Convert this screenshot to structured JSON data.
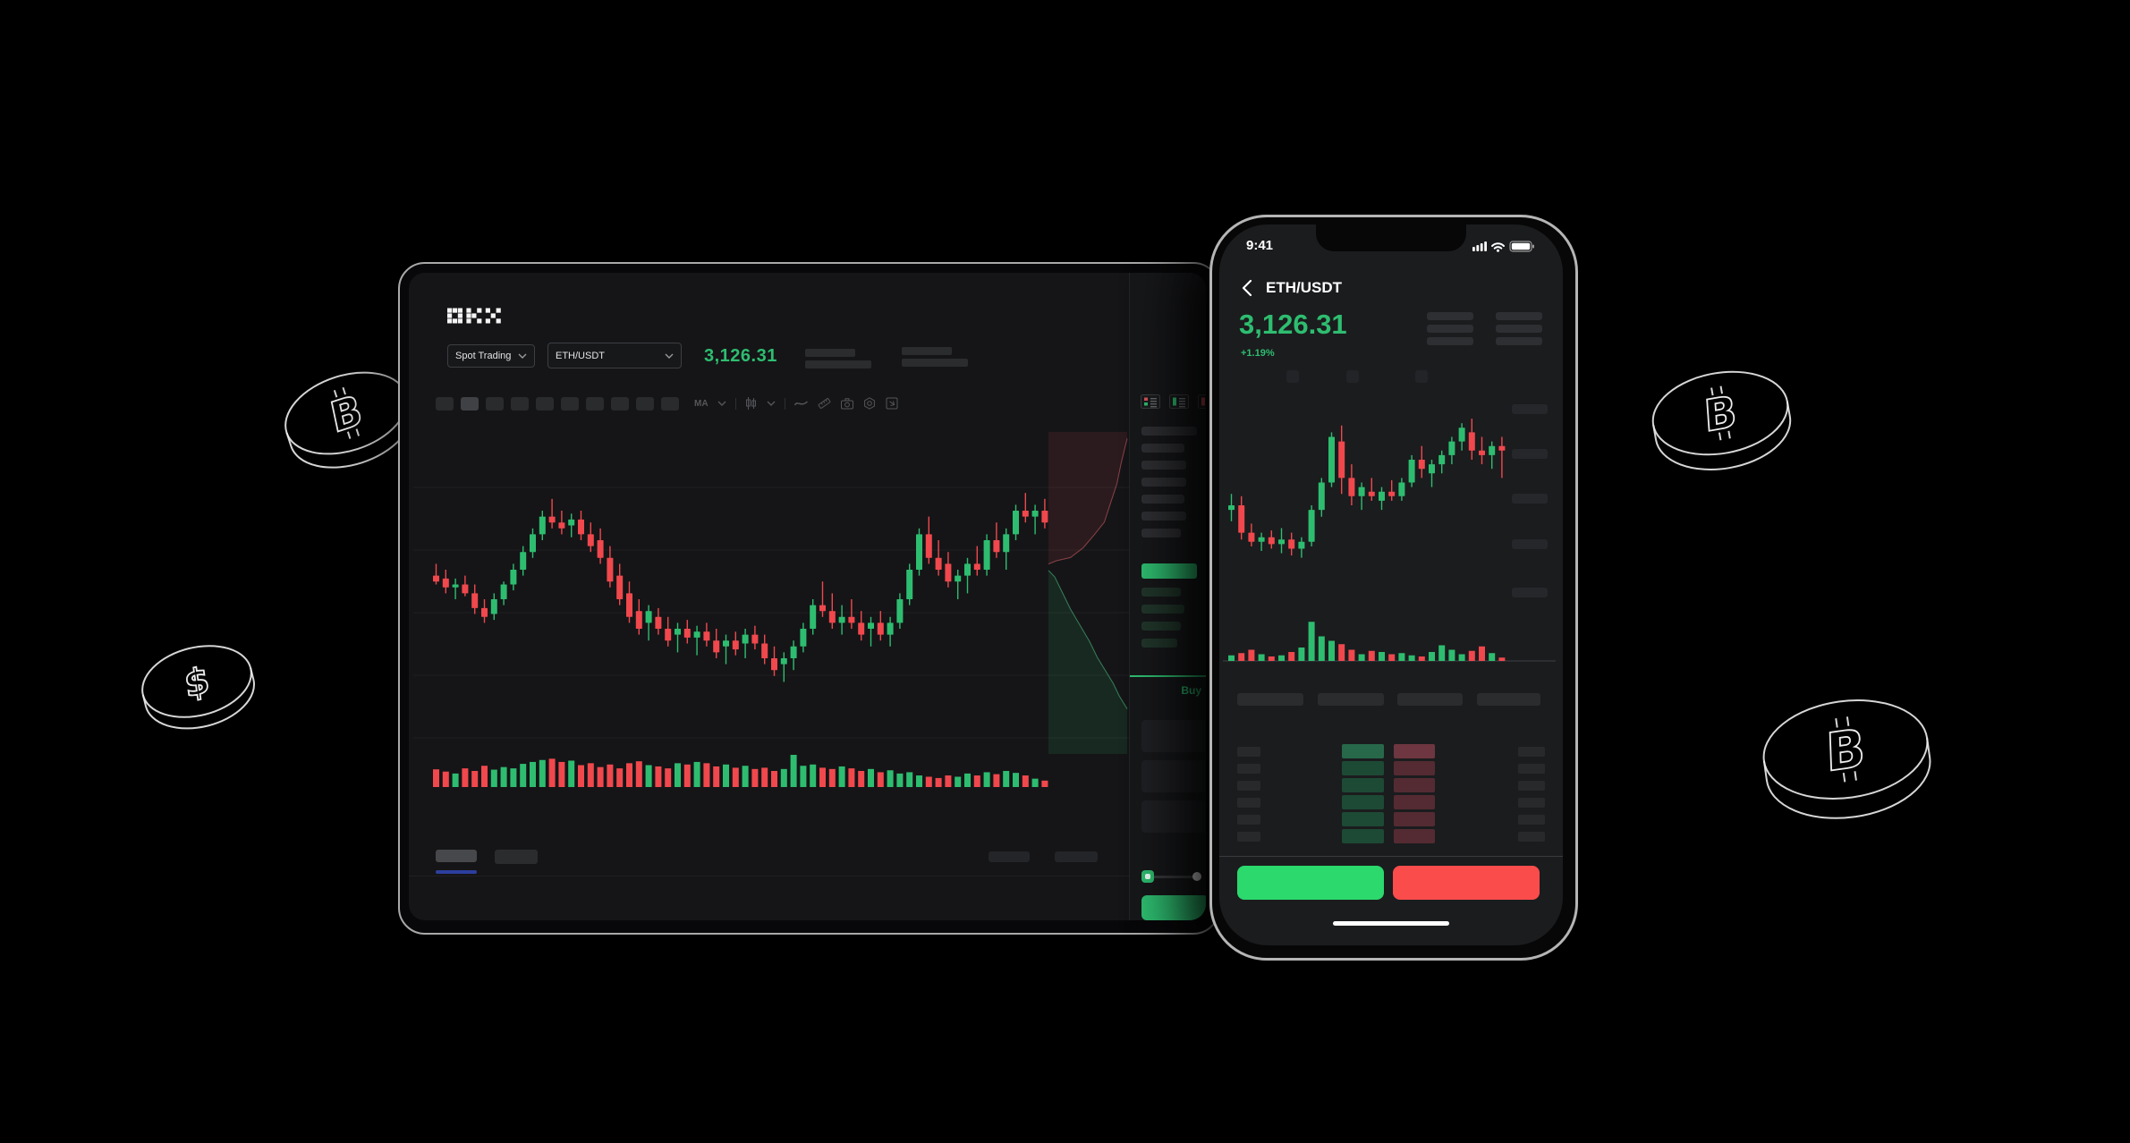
{
  "scene": {
    "description": "OKX trading app promo on black background",
    "background_color": "#000000"
  },
  "colors": {
    "up_green": "#2ebd70",
    "down_red": "#f0484d",
    "buy_button_green": "#2bd96d",
    "sell_button_red": "#fb4c4c",
    "tab_accent_blue": "#2c3f9e",
    "coin_outline": "#ededed"
  },
  "coins": [
    {
      "name": "bitcoin-coin-left",
      "symbol": "B",
      "type": "bitcoin"
    },
    {
      "name": "dollar-coin-left",
      "symbol": "$",
      "type": "dollar"
    },
    {
      "name": "bitcoin-coin-right-top",
      "symbol": "B",
      "type": "bitcoin"
    },
    {
      "name": "bitcoin-coin-right-bottom",
      "symbol": "B",
      "type": "bitcoin"
    }
  ],
  "tablet": {
    "header": {
      "logo": "OKX",
      "market_selector": "Spot Trading",
      "pair_selector": "ETH/USDT",
      "price": "3,126.31"
    },
    "toolbar": {
      "timeframe_slots": 10,
      "active_timeframe_index": 1,
      "ma_label": "MA",
      "icons": [
        "chevron-down",
        "candlestick-style",
        "chevron-down",
        "line-tool",
        "measure-tool",
        "camera-snapshot",
        "settings-gear",
        "fullscreen-expand"
      ]
    },
    "order_panel": {
      "layout_icons": [
        "book-both",
        "book-bids",
        "book-asks"
      ],
      "ask_row_widths": [
        62,
        48,
        50,
        50,
        48,
        50,
        44
      ],
      "bid_row_widths": [
        44,
        48,
        44,
        40
      ],
      "buy_tab": "Buy",
      "input_slots": 3
    },
    "bottom_tabs": {
      "left_slots": 2,
      "right_slots": 2,
      "active_index": 0
    }
  },
  "phone": {
    "status_bar": {
      "time": "9:41",
      "icons": [
        "signal",
        "wifi",
        "battery"
      ]
    },
    "header": {
      "back_icon": "chevron-left",
      "pair": "ETH/USDT"
    },
    "ticker": {
      "price": "3,126.31",
      "change": "+1.19%"
    },
    "chart": {
      "price_label_slots": 5,
      "timeframe_dot_slots": 3
    },
    "order_book": {
      "header_slots": 4,
      "row_count": 6
    },
    "actions": {
      "buy_button": "",
      "sell_button": ""
    }
  },
  "chart_data": [
    {
      "id": "tablet-candles",
      "type": "candlestick",
      "title": "ETH/USDT spot price with volume and depth overlay (tablet web app, no axis labels shown)",
      "last_price": "3,126.31",
      "units": "percent_of_chart_height",
      "grid": "faint horizontal lines",
      "candles_ohlc": [
        [
          58,
          62,
          55,
          56
        ],
        [
          57,
          60,
          52,
          54
        ],
        [
          54,
          57,
          50,
          55
        ],
        [
          55,
          58,
          51,
          52
        ],
        [
          52,
          55,
          45,
          47
        ],
        [
          47,
          50,
          42,
          44
        ],
        [
          45,
          52,
          43,
          50
        ],
        [
          50,
          56,
          48,
          55
        ],
        [
          55,
          62,
          53,
          60
        ],
        [
          60,
          68,
          58,
          66
        ],
        [
          66,
          74,
          64,
          72
        ],
        [
          72,
          80,
          70,
          78
        ],
        [
          78,
          84,
          74,
          76
        ],
        [
          76,
          80,
          72,
          74
        ],
        [
          75,
          79,
          71,
          77
        ],
        [
          77,
          80,
          70,
          72
        ],
        [
          72,
          76,
          66,
          68
        ],
        [
          70,
          74,
          62,
          64
        ],
        [
          64,
          68,
          54,
          56
        ],
        [
          58,
          62,
          48,
          50
        ],
        [
          52,
          56,
          42,
          44
        ],
        [
          46,
          50,
          38,
          40
        ],
        [
          42,
          48,
          36,
          46
        ],
        [
          44,
          47,
          38,
          40
        ],
        [
          40,
          44,
          34,
          36
        ],
        [
          38,
          42,
          32,
          40
        ],
        [
          40,
          43,
          35,
          37
        ],
        [
          37,
          41,
          31,
          39
        ],
        [
          39,
          42,
          34,
          36
        ],
        [
          36,
          40,
          30,
          32
        ],
        [
          34,
          38,
          28,
          36
        ],
        [
          36,
          39,
          31,
          33
        ],
        [
          35,
          40,
          30,
          38
        ],
        [
          38,
          41,
          33,
          35
        ],
        [
          35,
          38,
          28,
          30
        ],
        [
          30,
          34,
          24,
          26
        ],
        [
          28,
          32,
          22,
          30
        ],
        [
          30,
          36,
          26,
          34
        ],
        [
          34,
          42,
          32,
          40
        ],
        [
          40,
          50,
          38,
          48
        ],
        [
          48,
          56,
          44,
          46
        ],
        [
          46,
          52,
          40,
          42
        ],
        [
          42,
          48,
          38,
          44
        ],
        [
          44,
          50,
          40,
          42
        ],
        [
          42,
          46,
          36,
          38
        ],
        [
          40,
          44,
          34,
          42
        ],
        [
          42,
          46,
          36,
          38
        ],
        [
          38,
          44,
          34,
          42
        ],
        [
          42,
          52,
          40,
          50
        ],
        [
          50,
          62,
          48,
          60
        ],
        [
          60,
          74,
          58,
          72
        ],
        [
          72,
          78,
          62,
          64
        ],
        [
          64,
          70,
          58,
          60
        ],
        [
          62,
          66,
          54,
          56
        ],
        [
          56,
          60,
          50,
          58
        ],
        [
          58,
          64,
          52,
          62
        ],
        [
          62,
          68,
          58,
          60
        ],
        [
          60,
          72,
          58,
          70
        ],
        [
          70,
          76,
          64,
          66
        ],
        [
          66,
          74,
          60,
          72
        ],
        [
          72,
          82,
          70,
          80
        ],
        [
          80,
          86,
          76,
          78
        ],
        [
          78,
          82,
          72,
          80
        ],
        [
          80,
          84,
          74,
          76
        ]
      ],
      "volume": [
        55,
        48,
        42,
        58,
        50,
        66,
        54,
        62,
        58,
        72,
        78,
        84,
        88,
        78,
        82,
        68,
        74,
        62,
        70,
        58,
        74,
        80,
        68,
        64,
        58,
        74,
        70,
        78,
        74,
        64,
        70,
        60,
        66,
        56,
        60,
        50,
        56,
        100,
        66,
        70,
        60,
        56,
        64,
        58,
        50,
        56,
        46,
        52,
        42,
        46,
        36,
        32,
        28,
        36,
        32,
        42,
        36,
        46,
        40,
        50,
        44,
        36,
        26,
        20
      ],
      "colors": {
        "up": "#2ebd70",
        "down": "#f0484d"
      },
      "depth": {
        "asks_line": [
          [
            1,
            0.02
          ],
          [
            0.96,
            0.06
          ],
          [
            0.92,
            0.1
          ],
          [
            0.87,
            0.16
          ],
          [
            0.79,
            0.22
          ],
          [
            0.71,
            0.28
          ],
          [
            0.58,
            0.32
          ],
          [
            0.44,
            0.36
          ],
          [
            0.28,
            0.39
          ],
          [
            0.1,
            0.4
          ],
          [
            0,
            0.41
          ]
        ],
        "bids_line": [
          [
            0,
            0.43
          ],
          [
            0.08,
            0.45
          ],
          [
            0.18,
            0.5
          ],
          [
            0.28,
            0.55
          ],
          [
            0.4,
            0.6
          ],
          [
            0.52,
            0.65
          ],
          [
            0.62,
            0.7
          ],
          [
            0.72,
            0.74
          ],
          [
            0.82,
            0.78
          ],
          [
            0.9,
            0.82
          ],
          [
            1,
            0.86
          ]
        ]
      }
    },
    {
      "id": "phone-candles",
      "type": "candlestick",
      "title": "ETH/USDT price with volume (phone app, no axis labels shown)",
      "last_price": "3,126.31",
      "change": "+1.19%",
      "units": "percent_of_chart_height",
      "candles_ohlc": [
        [
          38,
          45,
          33,
          40
        ],
        [
          40,
          44,
          25,
          28
        ],
        [
          28,
          32,
          22,
          24
        ],
        [
          24,
          28,
          20,
          26
        ],
        [
          26,
          29,
          21,
          23
        ],
        [
          23,
          30,
          19,
          25
        ],
        [
          25,
          28,
          18,
          21
        ],
        [
          21,
          26,
          17,
          24
        ],
        [
          24,
          40,
          22,
          38
        ],
        [
          38,
          52,
          35,
          50
        ],
        [
          50,
          72,
          48,
          70
        ],
        [
          68,
          75,
          45,
          52
        ],
        [
          52,
          58,
          40,
          44
        ],
        [
          44,
          50,
          38,
          48
        ],
        [
          46,
          52,
          42,
          44
        ],
        [
          42,
          48,
          38,
          46
        ],
        [
          46,
          51,
          42,
          44
        ],
        [
          44,
          52,
          42,
          50
        ],
        [
          50,
          62,
          48,
          60
        ],
        [
          60,
          66,
          52,
          56
        ],
        [
          54,
          60,
          48,
          58
        ],
        [
          58,
          64,
          54,
          62
        ],
        [
          62,
          70,
          58,
          68
        ],
        [
          68,
          76,
          64,
          74
        ],
        [
          72,
          78,
          60,
          64
        ],
        [
          64,
          70,
          58,
          62
        ],
        [
          62,
          68,
          56,
          66
        ],
        [
          66,
          70,
          52,
          64
        ]
      ],
      "volume": [
        5,
        7,
        10,
        6,
        4,
        5,
        8,
        12,
        35,
        22,
        18,
        15,
        10,
        6,
        9,
        8,
        6,
        7,
        5,
        4,
        8,
        14,
        10,
        6,
        9,
        13,
        7,
        3
      ],
      "colors": {
        "up": "#2ebd70",
        "down": "#f0484d"
      }
    }
  ]
}
